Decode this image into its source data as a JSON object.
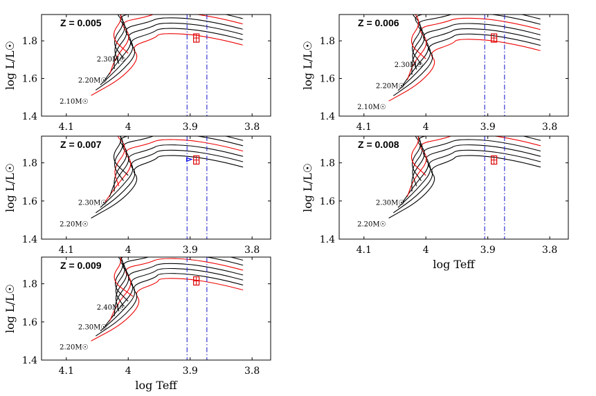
{
  "colors": {
    "track_black": "#000000",
    "track_red": "#ee0000",
    "instability_lines": "#2222cc",
    "star_box": "#dd0000",
    "blue_marker": "#1a1aee"
  },
  "chart_data": [
    {
      "type": "line",
      "title": "Z = 0.005",
      "xlabel": "",
      "ylabel": "log L/L☉",
      "xlim": [
        4.14,
        3.77
      ],
      "ylim": [
        1.4,
        1.94
      ],
      "xticks": [
        "4.1",
        "4",
        "3.9",
        "3.8"
      ],
      "yticks": [
        "1.4",
        "1.6",
        "1.8"
      ],
      "n_tracks": 9,
      "red_tracks": [
        0,
        4,
        8
      ],
      "track_spacing": 0.028,
      "zams_logL_lowest": 1.51,
      "mass_labels": [
        "2.30M☉",
        "2.20M☉",
        "2.10M☉"
      ],
      "instability_strip": [
        3.905,
        3.873
      ],
      "star": {
        "logTeff": 3.89,
        "logL": 1.815
      },
      "blue_marker": false
    },
    {
      "type": "line",
      "title": "Z = 0.006",
      "xlabel": "",
      "ylabel": "log L/L☉",
      "xlim": [
        4.14,
        3.77
      ],
      "ylim": [
        1.4,
        1.94
      ],
      "xticks": [
        "4.1",
        "4",
        "3.9",
        "3.8"
      ],
      "yticks": [
        "1.4",
        "1.6",
        "1.8"
      ],
      "n_tracks": 9,
      "red_tracks": [
        0,
        4,
        8
      ],
      "track_spacing": 0.028,
      "zams_logL_lowest": 1.48,
      "mass_labels": [
        "2.30M☉",
        "2.20M☉",
        "2.10M☉"
      ],
      "instability_strip": [
        3.905,
        3.873
      ],
      "star": {
        "logTeff": 3.89,
        "logL": 1.815
      },
      "blue_marker": false
    },
    {
      "type": "line",
      "title": "Z = 0.007",
      "xlabel": "",
      "ylabel": "log L/L☉",
      "xlim": [
        4.14,
        3.77
      ],
      "ylim": [
        1.4,
        1.94
      ],
      "xticks": [
        "4.1",
        "4",
        "3.9",
        "3.8"
      ],
      "yticks": [
        "1.4",
        "1.6",
        "1.8"
      ],
      "n_tracks": 9,
      "red_tracks": [
        3,
        6
      ],
      "track_spacing": 0.028,
      "zams_logL_lowest": 1.51,
      "mass_labels": [
        "2.30M☉",
        "2.20M☉"
      ],
      "instability_strip": [
        3.905,
        3.873
      ],
      "star": {
        "logTeff": 3.89,
        "logL": 1.815
      },
      "blue_marker": true
    },
    {
      "type": "line",
      "title": "Z = 0.008",
      "xlabel": "log Teff",
      "ylabel": "log L/L☉",
      "xlim": [
        4.14,
        3.77
      ],
      "ylim": [
        1.4,
        1.94
      ],
      "xticks": [
        "4.1",
        "4",
        "3.9",
        "3.8"
      ],
      "yticks": [
        "1.4",
        "1.6",
        "1.8"
      ],
      "n_tracks": 9,
      "red_tracks": [
        4,
        8
      ],
      "track_spacing": 0.028,
      "zams_logL_lowest": 1.51,
      "mass_labels": [
        "2.30M☉",
        "2.20M☉"
      ],
      "instability_strip": [
        3.905,
        3.873
      ],
      "star": {
        "logTeff": 3.89,
        "logL": 1.815
      },
      "blue_marker": false
    },
    {
      "type": "line",
      "title": "Z = 0.009",
      "xlabel": "log Teff",
      "ylabel": "log L/L☉",
      "xlim": [
        4.14,
        3.77
      ],
      "ylim": [
        1.4,
        1.94
      ],
      "xticks": [
        "4.1",
        "4",
        "3.9",
        "3.8"
      ],
      "yticks": [
        "1.4",
        "1.6",
        "1.8"
      ],
      "n_tracks": 10,
      "red_tracks": [
        0,
        4,
        9
      ],
      "track_spacing": 0.026,
      "zams_logL_lowest": 1.5,
      "mass_labels": [
        "2.40M☉",
        "2.30M☉",
        "2.20M☉"
      ],
      "instability_strip": [
        3.905,
        3.873
      ],
      "star": {
        "logTeff": 3.89,
        "logL": 1.815
      },
      "blue_marker": false
    }
  ]
}
